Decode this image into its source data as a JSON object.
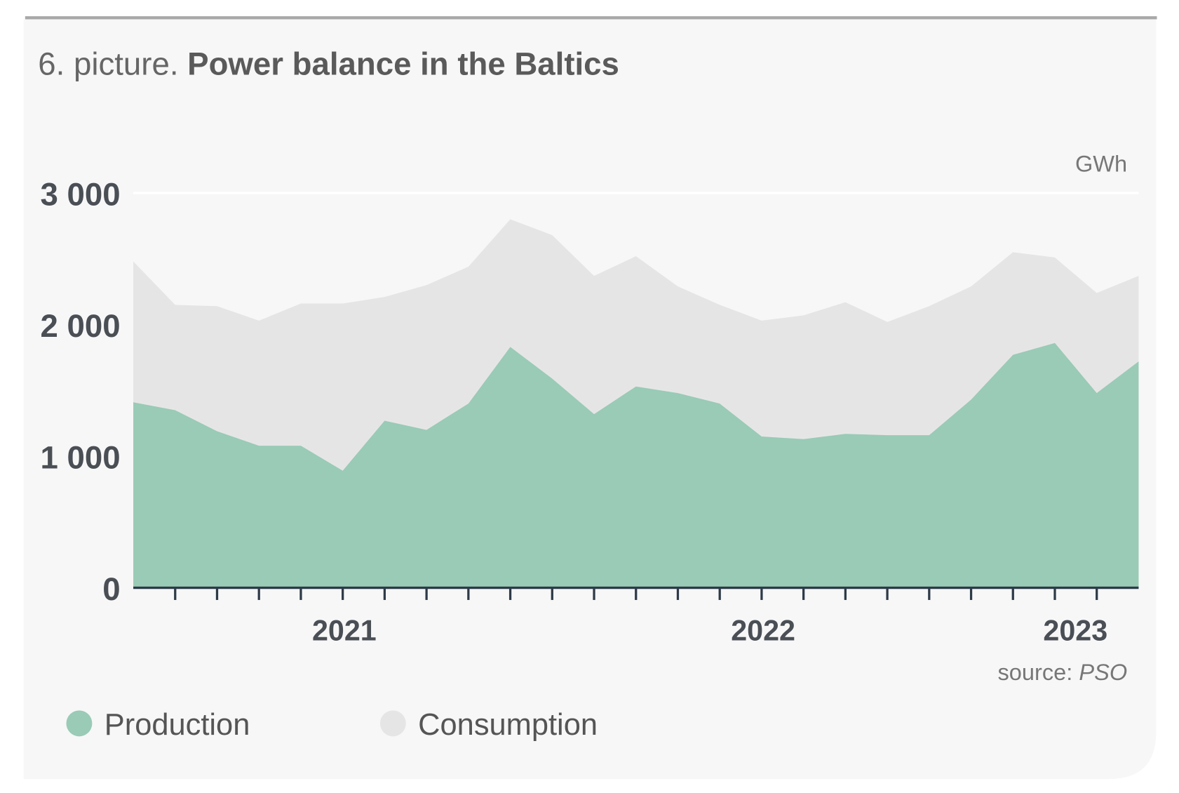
{
  "chart_data": {
    "type": "area",
    "figure_label": "6. picture.",
    "title": "Power balance in the Baltics",
    "unit": "GWh",
    "source_label": "source:",
    "source": "PSO",
    "categories": [
      null,
      null,
      null,
      null,
      null,
      "2021",
      null,
      null,
      null,
      null,
      null,
      null,
      null,
      null,
      null,
      "2022",
      null,
      null,
      null,
      null,
      null,
      null,
      "2023",
      null,
      null
    ],
    "series": [
      {
        "name": "Consumption",
        "color": "#e6e5e6",
        "values": [
          2480,
          2150,
          2140,
          2030,
          2160,
          2160,
          2210,
          2300,
          2440,
          2800,
          2680,
          2370,
          2520,
          2290,
          2150,
          2030,
          2070,
          2170,
          2020,
          2140,
          2290,
          2550,
          2510,
          2240,
          2370
        ]
      },
      {
        "name": "Production",
        "color": "#99cbb6",
        "values": [
          1410,
          1350,
          1190,
          1080,
          1080,
          890,
          1270,
          1200,
          1400,
          1830,
          1590,
          1320,
          1530,
          1480,
          1400,
          1150,
          1130,
          1170,
          1160,
          1160,
          1430,
          1770,
          1860,
          1480,
          1720
        ]
      }
    ],
    "legend_order": [
      "Production",
      "Consumption"
    ],
    "ylim": [
      0,
      3000
    ],
    "yticks": [
      0,
      {
        "value": 1000,
        "label": "1 000"
      },
      {
        "value": 2000,
        "label": "2 000"
      },
      {
        "value": 3000,
        "label": "3 000"
      }
    ],
    "grid": true
  }
}
